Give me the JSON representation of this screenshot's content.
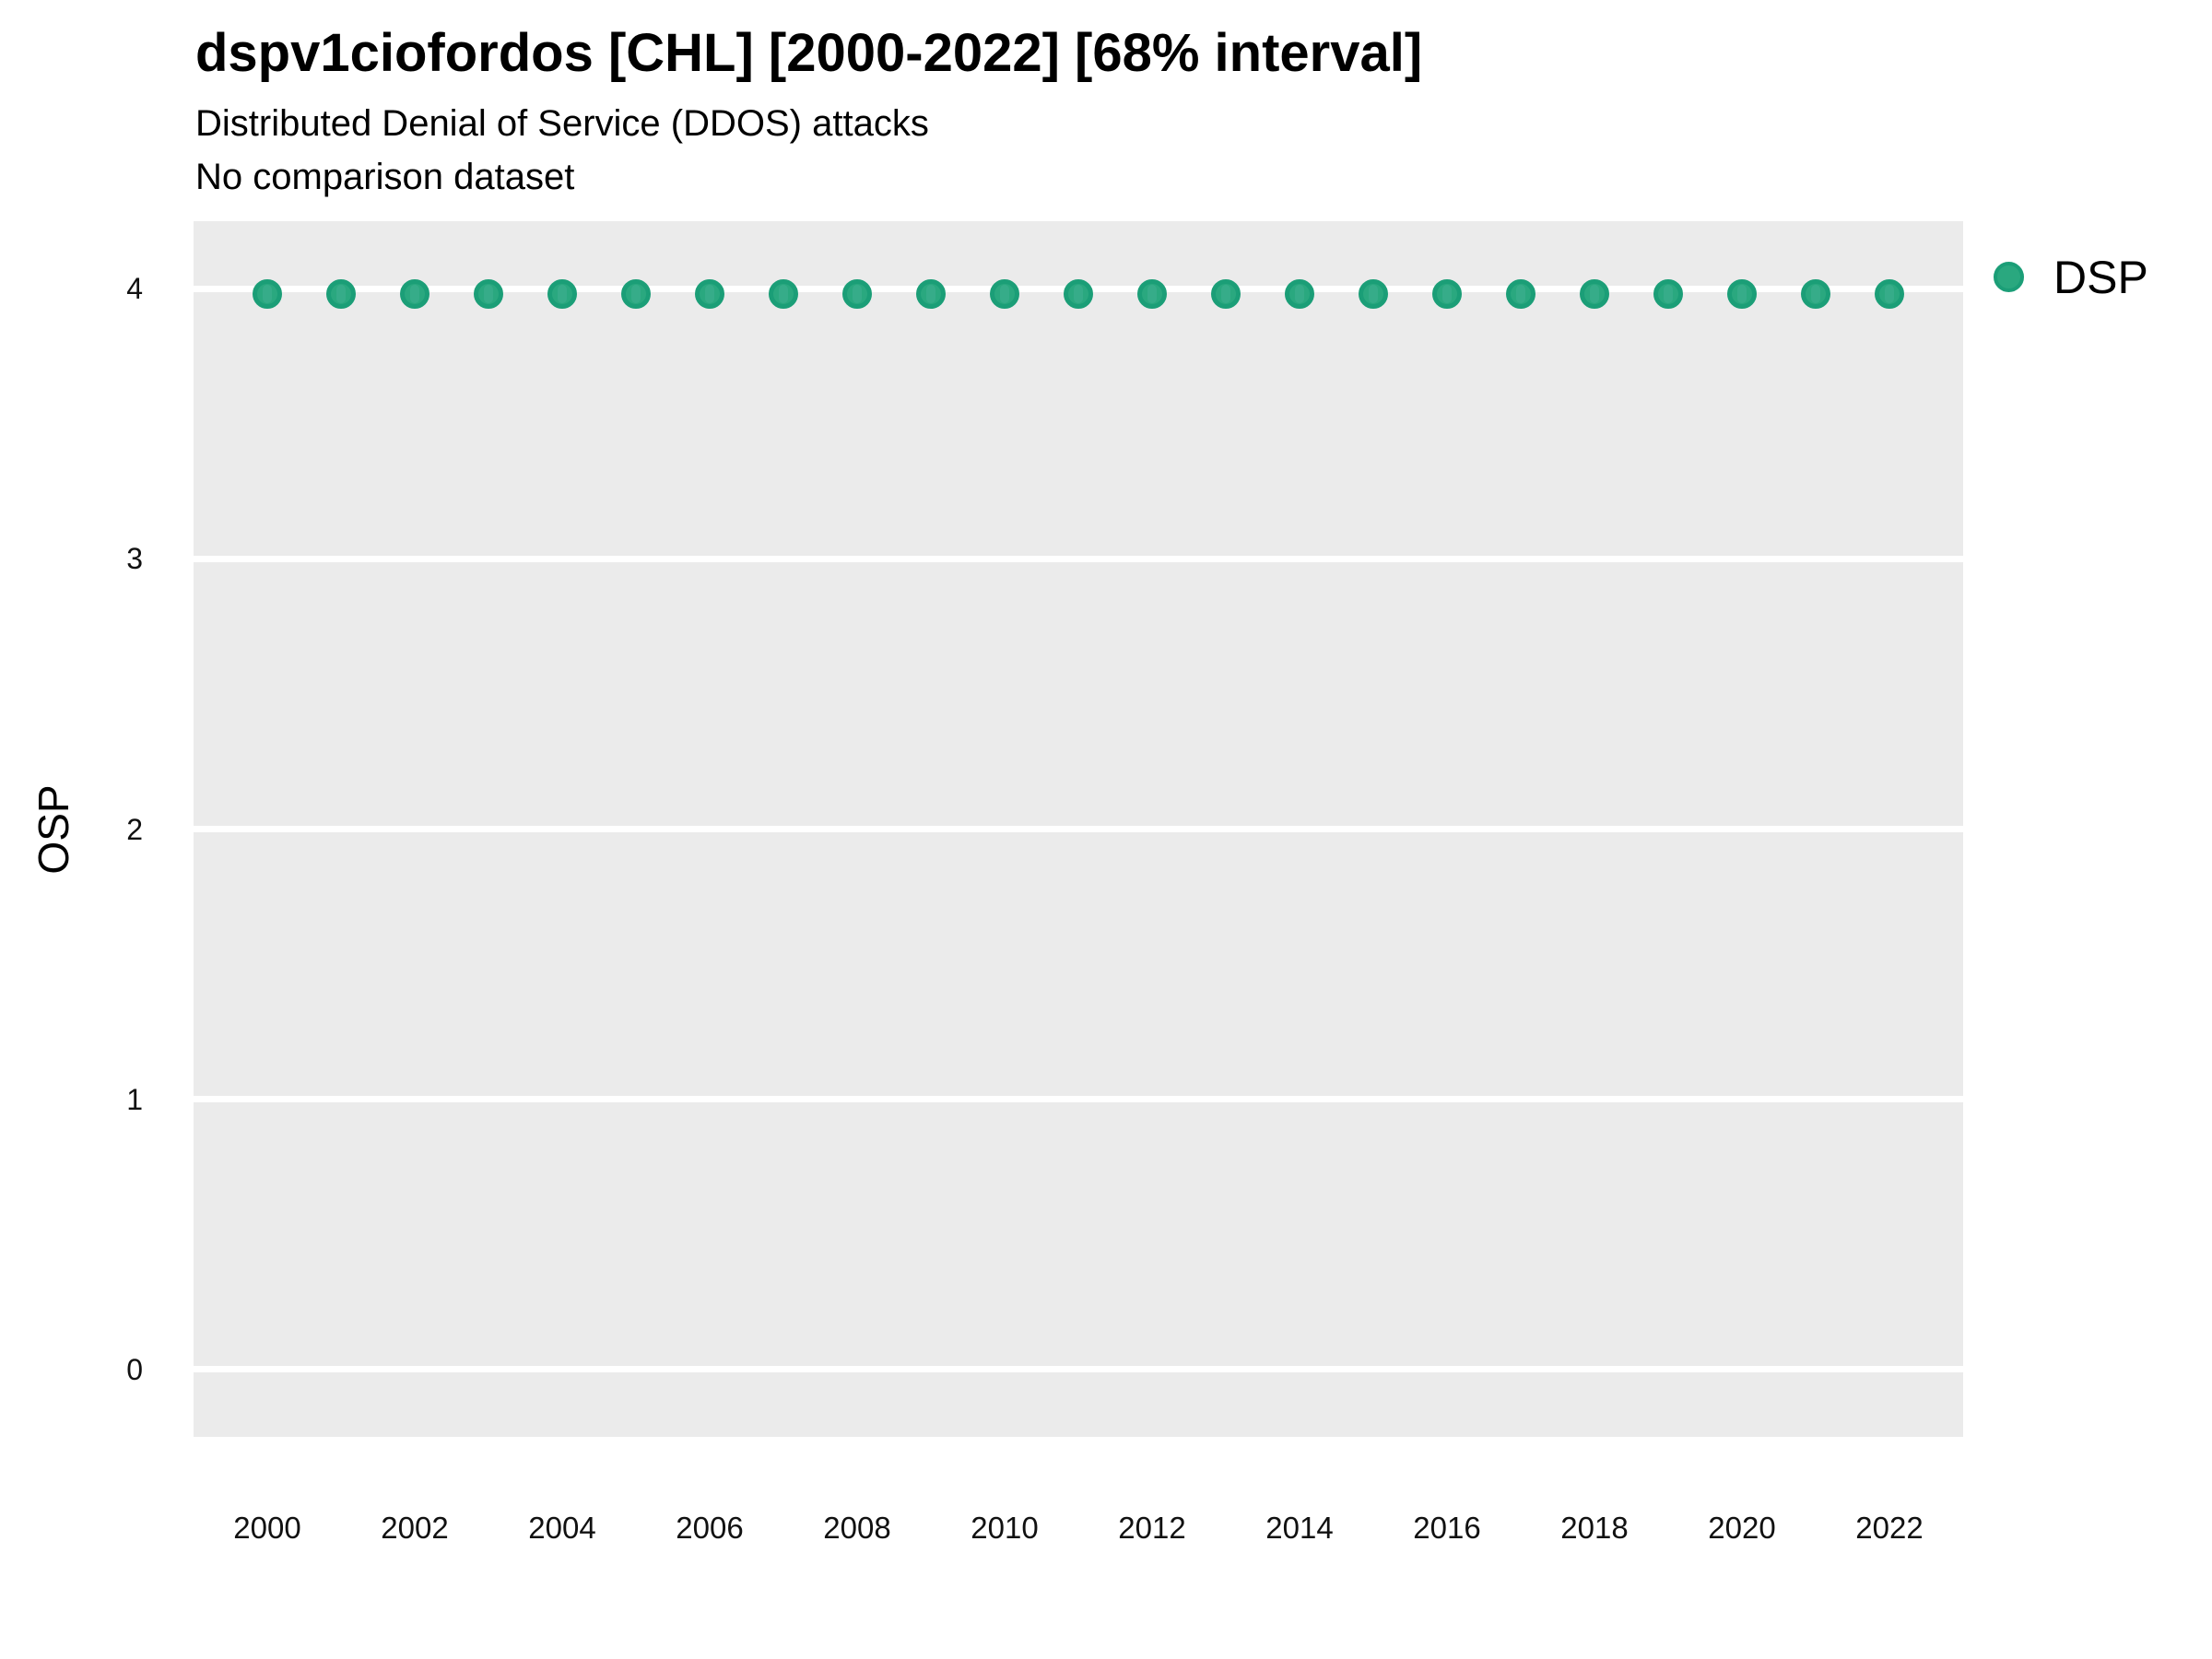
{
  "chart_data": {
    "type": "scatter",
    "title": "dspv1ciofordos [CHL] [2000-2022] [68% interval]",
    "subtitle": "Distributed Denial of Service (DDOS) attacks",
    "note": "No comparison dataset",
    "xlabel": "",
    "ylabel": "OSP",
    "x": [
      2000,
      2001,
      2002,
      2003,
      2004,
      2005,
      2006,
      2007,
      2008,
      2009,
      2010,
      2011,
      2012,
      2013,
      2014,
      2015,
      2016,
      2017,
      2018,
      2019,
      2020,
      2021,
      2022
    ],
    "series": [
      {
        "name": "DSP",
        "values": [
          3.98,
          3.98,
          3.98,
          3.98,
          3.98,
          3.98,
          3.98,
          3.98,
          3.98,
          3.98,
          3.98,
          3.98,
          3.98,
          3.98,
          3.98,
          3.98,
          3.98,
          3.98,
          3.98,
          3.98,
          3.98,
          3.98,
          3.98
        ]
      }
    ],
    "ylim": [
      -0.25,
      4.25
    ],
    "yticks": [
      "0",
      "1",
      "2",
      "3",
      "4"
    ],
    "ytick_values": [
      0,
      1,
      2,
      3,
      4
    ],
    "xticks": [
      "2000",
      "2002",
      "2004",
      "2006",
      "2008",
      "2010",
      "2012",
      "2014",
      "2016",
      "2018",
      "2020",
      "2022"
    ],
    "xtick_values": [
      2000,
      2002,
      2004,
      2006,
      2008,
      2010,
      2012,
      2014,
      2016,
      2018,
      2020,
      2022
    ],
    "grid": "major horizontal white gridlines on gray panel, no minor grid",
    "legend_position": "right",
    "colors": {
      "panel_background": "#ebebeb",
      "gridline": "#ffffff",
      "point_fill": "#2aa87f",
      "point_border": "#1b9e77",
      "interval_fill": "#36ac89",
      "text": "#000000"
    }
  }
}
